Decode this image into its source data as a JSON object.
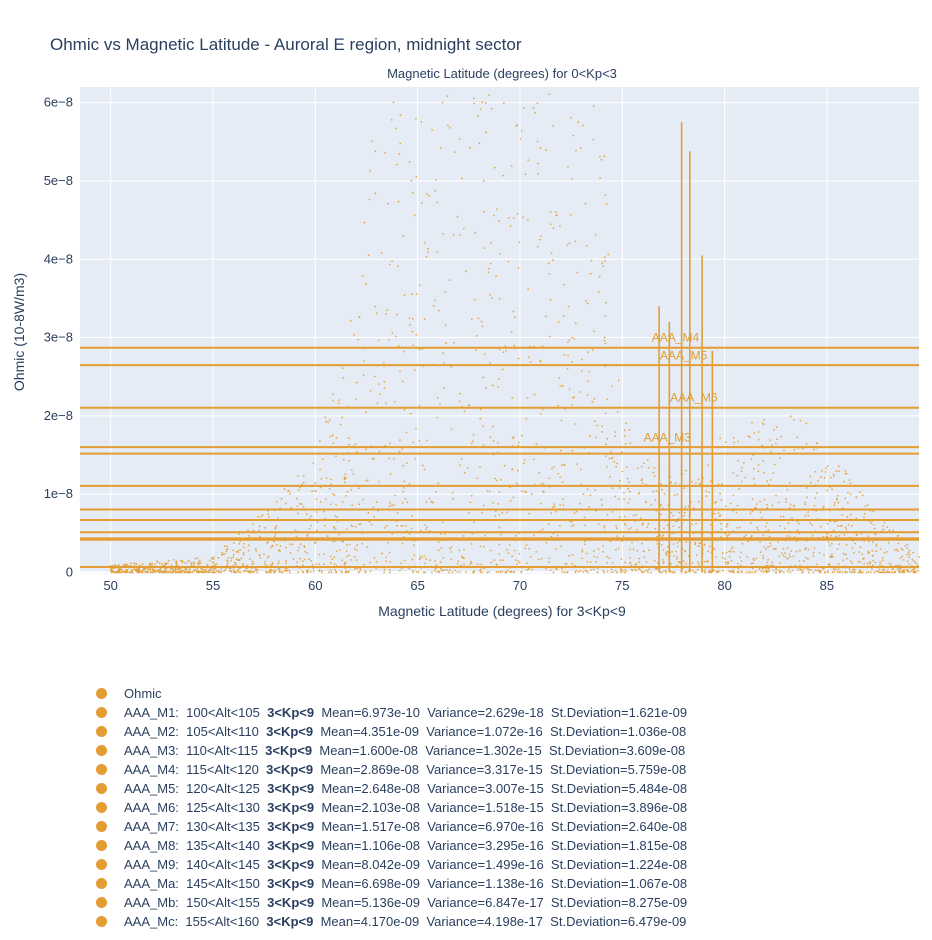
{
  "colors": {
    "marker": "#e39d32",
    "plot_bg": "#e5ecf6",
    "grid": "#ffffff",
    "text": "#2a3f5f"
  },
  "chart_data": {
    "type": "scatter",
    "title": "Ohmic vs Magnetic Latitude - Auroral E region, midnight sector",
    "top_axis_label": "Magnetic Latitude (degrees) for 0<Kp<3",
    "xlabel": "Magnetic Latitude (degrees) for 3<Kp<9",
    "ylabel": "Ohmic (10-8W/m3)",
    "xlim": [
      48.5,
      89.5
    ],
    "ylim": [
      -2e-10,
      6.2e-08
    ],
    "x_ticks": [
      50,
      55,
      60,
      65,
      70,
      75,
      80,
      85
    ],
    "x_tick_labels": [
      "50",
      "55",
      "60",
      "65",
      "70",
      "75",
      "80",
      "85"
    ],
    "y_ticks": [
      0,
      1e-08,
      2e-08,
      3e-08,
      4e-08,
      5e-08,
      6e-08
    ],
    "y_tick_labels": [
      "0",
      "1e−8",
      "2e−8",
      "3e−8",
      "4e−8",
      "5e−8",
      "6e−8"
    ],
    "grid": true,
    "legend_position": "bottom",
    "mean_lines": [
      {
        "name": "AAA_M1",
        "y": 6.973e-10
      },
      {
        "name": "AAA_M2",
        "y": 4.351e-09
      },
      {
        "name": "AAA_M3",
        "y": 1.6e-08
      },
      {
        "name": "AAA_M4",
        "y": 2.869e-08
      },
      {
        "name": "AAA_M5",
        "y": 2.648e-08
      },
      {
        "name": "AAA_M6",
        "y": 2.103e-08
      },
      {
        "name": "AAA_M7",
        "y": 1.517e-08
      },
      {
        "name": "AAA_M8",
        "y": 1.106e-08
      },
      {
        "name": "AAA_M9",
        "y": 8.042e-09
      },
      {
        "name": "AAA_Ma",
        "y": 6.698e-09
      },
      {
        "name": "AAA_Mb",
        "y": 5.136e-09
      },
      {
        "name": "AAA_Mc",
        "y": 4.17e-09
      }
    ],
    "line_annotations": [
      {
        "text": "AAA_M4",
        "x": 77.6,
        "y": 2.95e-08
      },
      {
        "text": "AAA_M5",
        "x": 78.0,
        "y": 2.72e-08
      },
      {
        "text": "AAA_M6",
        "x": 78.5,
        "y": 2.18e-08
      },
      {
        "text": "AAA_M3",
        "x": 77.2,
        "y": 1.67e-08
      }
    ],
    "spikes": [
      {
        "x": 76.8,
        "y": 3.4e-08
      },
      {
        "x": 77.3,
        "y": 3.2e-08
      },
      {
        "x": 77.9,
        "y": 5.75e-08
      },
      {
        "x": 78.3,
        "y": 5.38e-08
      },
      {
        "x": 78.9,
        "y": 4.05e-08
      },
      {
        "x": 79.4,
        "y": 2.83e-08
      }
    ],
    "series": [
      {
        "name": "Ohmic",
        "note_scatter_envelope": [
          {
            "x": 50,
            "y": 1e-09
          },
          {
            "x": 55,
            "y": 2e-09
          },
          {
            "x": 57.5,
            "y": 8e-09
          },
          {
            "x": 60,
            "y": 1.5e-08
          },
          {
            "x": 62,
            "y": 3.5e-08
          },
          {
            "x": 63,
            "y": 6.2e-08
          },
          {
            "x": 70,
            "y": 6.2e-08
          },
          {
            "x": 74,
            "y": 6e-08
          },
          {
            "x": 75,
            "y": 2e-08
          },
          {
            "x": 78,
            "y": 1.3e-08
          },
          {
            "x": 81,
            "y": 2e-08
          },
          {
            "x": 84,
            "y": 2e-08
          },
          {
            "x": 87,
            "y": 9e-09
          },
          {
            "x": 89.5,
            "y": 2e-09
          }
        ]
      }
    ]
  },
  "legend": [
    {
      "name": "Ohmic",
      "pre": "",
      "kp": "",
      "post": ""
    },
    {
      "name": "AAA_M1",
      "pre": "AAA_M1:  100<Alt<105  ",
      "kp": "3<Kp<9",
      "post": "  Mean=6.973e-10  Variance=2.629e-18  St.Deviation=1.621e-09"
    },
    {
      "name": "AAA_M2",
      "pre": "AAA_M2:  105<Alt<110  ",
      "kp": "3<Kp<9",
      "post": "  Mean=4.351e-09  Variance=1.072e-16  St.Deviation=1.036e-08"
    },
    {
      "name": "AAA_M3",
      "pre": "AAA_M3:  110<Alt<115  ",
      "kp": "3<Kp<9",
      "post": "  Mean=1.600e-08  Variance=1.302e-15  St.Deviation=3.609e-08"
    },
    {
      "name": "AAA_M4",
      "pre": "AAA_M4:  115<Alt<120  ",
      "kp": "3<Kp<9",
      "post": "  Mean=2.869e-08  Variance=3.317e-15  St.Deviation=5.759e-08"
    },
    {
      "name": "AAA_M5",
      "pre": "AAA_M5:  120<Alt<125  ",
      "kp": "3<Kp<9",
      "post": "  Mean=2.648e-08  Variance=3.007e-15  St.Deviation=5.484e-08"
    },
    {
      "name": "AAA_M6",
      "pre": "AAA_M6:  125<Alt<130  ",
      "kp": "3<Kp<9",
      "post": "  Mean=2.103e-08  Variance=1.518e-15  St.Deviation=3.896e-08"
    },
    {
      "name": "AAA_M7",
      "pre": "AAA_M7:  130<Alt<135  ",
      "kp": "3<Kp<9",
      "post": "  Mean=1.517e-08  Variance=6.970e-16  St.Deviation=2.640e-08"
    },
    {
      "name": "AAA_M8",
      "pre": "AAA_M8:  135<Alt<140  ",
      "kp": "3<Kp<9",
      "post": "  Mean=1.106e-08  Variance=3.295e-16  St.Deviation=1.815e-08"
    },
    {
      "name": "AAA_M9",
      "pre": "AAA_M9:  140<Alt<145  ",
      "kp": "3<Kp<9",
      "post": "  Mean=8.042e-09  Variance=1.499e-16  St.Deviation=1.224e-08"
    },
    {
      "name": "AAA_Ma",
      "pre": "AAA_Ma:  145<Alt<150  ",
      "kp": "3<Kp<9",
      "post": "  Mean=6.698e-09  Variance=1.138e-16  St.Deviation=1.067e-08"
    },
    {
      "name": "AAA_Mb",
      "pre": "AAA_Mb:  150<Alt<155  ",
      "kp": "3<Kp<9",
      "post": "  Mean=5.136e-09  Variance=6.847e-17  St.Deviation=8.275e-09"
    },
    {
      "name": "AAA_Mc",
      "pre": "AAA_Mc:  155<Alt<160  ",
      "kp": "3<Kp<9",
      "post": "  Mean=4.170e-09  Variance=4.198e-17  St.Deviation=6.479e-09"
    }
  ]
}
